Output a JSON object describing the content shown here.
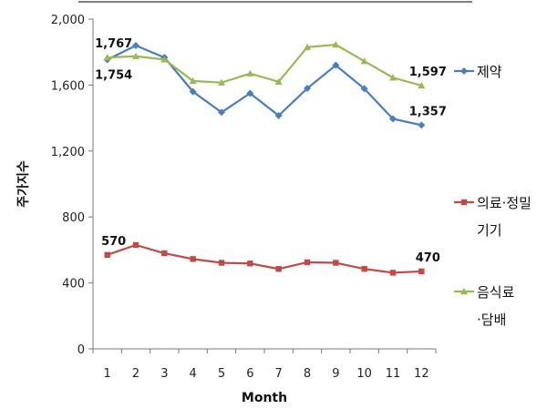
{
  "chart_data": {
    "type": "line",
    "title": "",
    "xlabel": "Month",
    "ylabel": "주가지수",
    "x": [
      1,
      2,
      3,
      4,
      5,
      6,
      7,
      8,
      9,
      10,
      11,
      12
    ],
    "ylim": [
      0,
      2000
    ],
    "yticks": [
      0,
      400,
      800,
      1200,
      1600,
      2000
    ],
    "ytick_labels": [
      "0",
      "400",
      "800",
      "1,200",
      "1,600",
      "2,000"
    ],
    "grid": false,
    "legend_position": "right",
    "series": [
      {
        "name": "제약",
        "legend_lines": [
          "제약"
        ],
        "color": "#4a7ebb",
        "marker": "diamond",
        "values": [
          1754,
          1840,
          1767,
          1560,
          1435,
          1550,
          1415,
          1580,
          1720,
          1578,
          1395,
          1357
        ]
      },
      {
        "name": "의료·정밀기기",
        "legend_lines": [
          "의료·정밀",
          "기기"
        ],
        "color": "#be4b48",
        "marker": "square",
        "values": [
          570,
          630,
          580,
          545,
          522,
          518,
          485,
          525,
          522,
          485,
          462,
          470
        ]
      },
      {
        "name": "음식료·담배",
        "legend_lines": [
          "음식료",
          "·담배"
        ],
        "color": "#98b954",
        "marker": "triangle",
        "values": [
          1767,
          1775,
          1755,
          1625,
          1615,
          1670,
          1620,
          1830,
          1845,
          1745,
          1645,
          1597
        ]
      }
    ],
    "annotations": [
      {
        "text": "1,767",
        "series": 2,
        "index": 0,
        "pos": "above"
      },
      {
        "text": "1,754",
        "series": 0,
        "index": 0,
        "pos": "below"
      },
      {
        "text": "1,597",
        "series": 2,
        "index": 11,
        "pos": "above"
      },
      {
        "text": "1,357",
        "series": 0,
        "index": 11,
        "pos": "above"
      },
      {
        "text": "570",
        "series": 1,
        "index": 0,
        "pos": "above"
      },
      {
        "text": "470",
        "series": 1,
        "index": 11,
        "pos": "above"
      }
    ]
  }
}
